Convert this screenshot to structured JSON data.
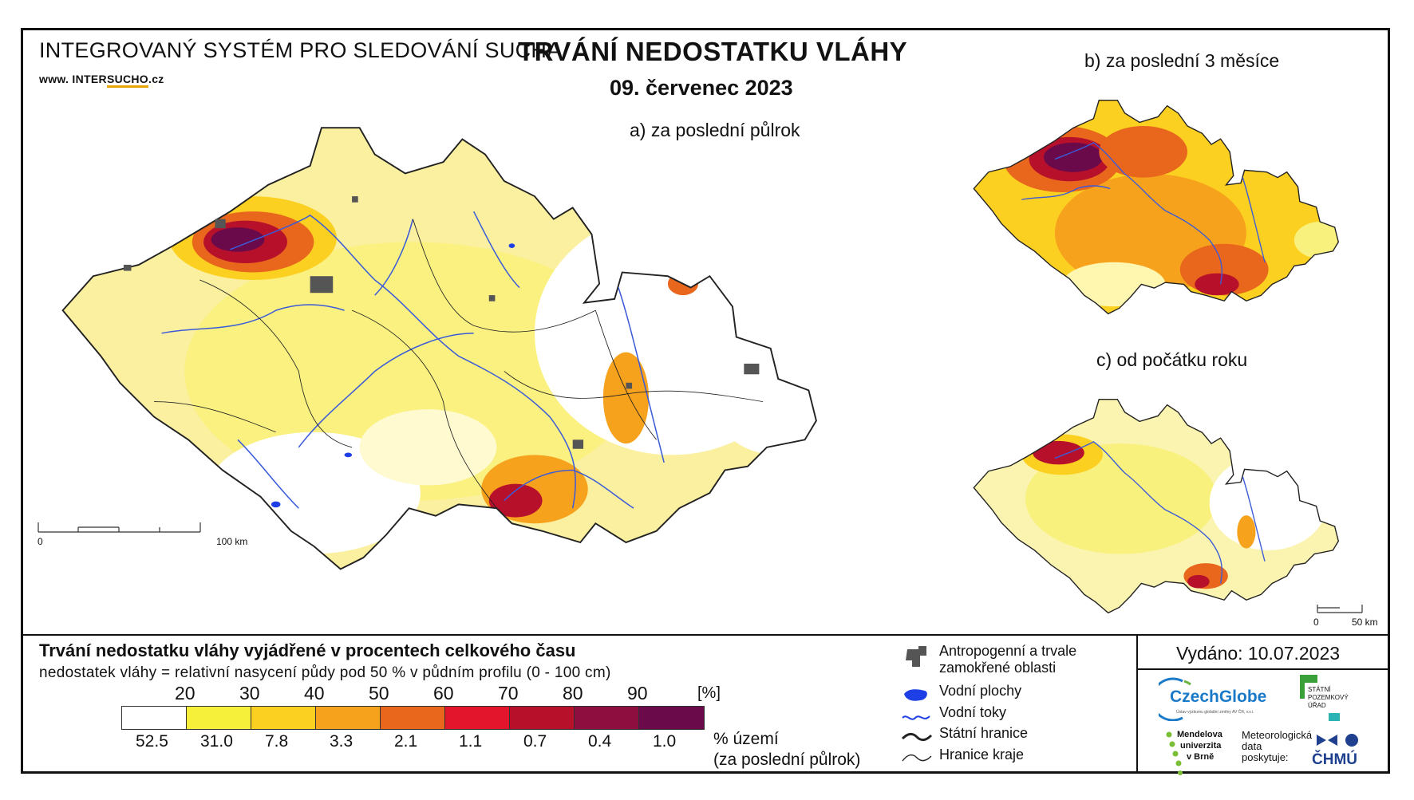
{
  "header": {
    "system_title": "INTEGROVANÝ SYSTÉM PRO SLEDOVÁNÍ SUCHA",
    "url_prefix": "www. INTER",
    "url_highlight": "SUCHO",
    "url_suffix": ".cz",
    "main_title": "TRVÁNÍ NEDOSTATKU VLÁHY",
    "date": "09. červenec 2023"
  },
  "maps": {
    "a_label": "a) za poslední půlrok",
    "b_label": "b) za poslední 3 měsíce",
    "c_label": "c) od počátku roku",
    "scale_a_zero": "0",
    "scale_a_end": "100 km",
    "scale_c_zero": "0",
    "scale_c_end": "50 km"
  },
  "legend": {
    "title": "Trvání nedostatku vláhy vyjádřené v procentech celkového času",
    "subtitle": "nedostatek vláhy = relativní nasycení půdy pod 50 % v půdním profilu (0 - 100 cm)",
    "thresholds": [
      "20",
      "30",
      "40",
      "50",
      "60",
      "70",
      "80",
      "90"
    ],
    "unit": "[%]",
    "class_colors": [
      "#ffffff",
      "#f6f03a",
      "#fcd021",
      "#f7a21c",
      "#e8671d",
      "#e3152d",
      "#b7102b",
      "#8e0f3f",
      "#6a0a4a"
    ],
    "area_shares": [
      "52.5",
      "31.0",
      "7.8",
      "3.3",
      "2.1",
      "1.1",
      "0.7",
      "0.4",
      "1.0"
    ],
    "share_label_1": "% území",
    "share_label_2": "(za poslední půlrok)"
  },
  "symbols": {
    "urban_label_1": "Antropogenní a trvale",
    "urban_label_2": "zamokřené oblasti",
    "water_bodies": "Vodní plochy",
    "rivers": "Vodní toky",
    "state_border": "Státní hranice",
    "region_border": "Hranice kraje",
    "colors": {
      "urban": "#555555",
      "water": "#1f3fe6",
      "river": "#3b5bd9",
      "border": "#222222"
    }
  },
  "issued": "Vydáno: 10.07.2023",
  "logos": {
    "czechglobe": "CzechGlobe",
    "czechglobe_sub": "Ústav výzkumu globální změny AV ČR, v.v.i.",
    "spu_1": "STÁTNÍ",
    "spu_2": "POZEMKOVÝ",
    "spu_3": "ÚŘAD",
    "mendel_1": "Mendelova",
    "mendel_2": "univerzita",
    "mendel_3": "v Brně",
    "met_1": "Meteorologická",
    "met_2": "data",
    "met_3": "poskytuje:",
    "chmu": "ČHMÚ"
  }
}
